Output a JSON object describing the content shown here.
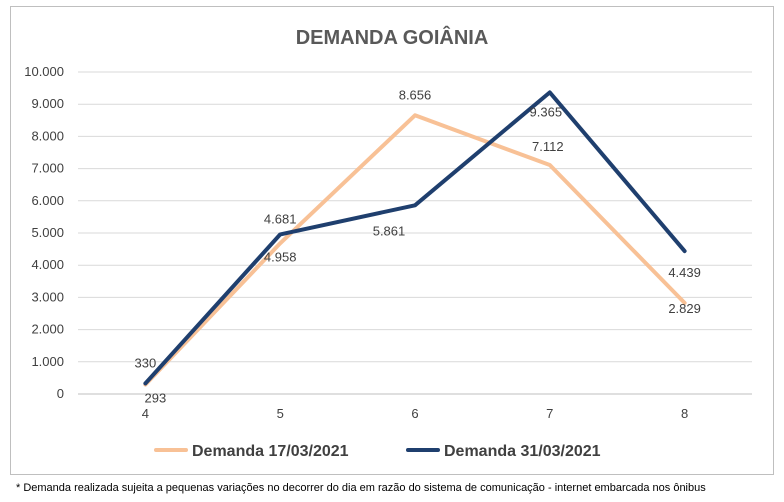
{
  "chart_data": {
    "type": "line",
    "title": "DEMANDA GOIÂNIA",
    "xlabel": "",
    "ylabel": "",
    "categories": [
      "4",
      "5",
      "6",
      "7",
      "8"
    ],
    "ylim": [
      0,
      10000
    ],
    "yticks": [
      0,
      1000,
      2000,
      3000,
      4000,
      5000,
      6000,
      7000,
      8000,
      9000,
      10000
    ],
    "ytick_labels": [
      "0",
      "1.000",
      "2.000",
      "3.000",
      "4.000",
      "5.000",
      "6.000",
      "7.000",
      "8.000",
      "9.000",
      "10.000"
    ],
    "grid": true,
    "legend_position": "bottom",
    "series": [
      {
        "name": "Demanda 17/03/2021",
        "color": "#f8c196",
        "values": [
          293,
          4681,
          8656,
          7112,
          2829
        ],
        "labels": [
          "293",
          "4.681",
          "8.656",
          "7.112",
          "2.829"
        ]
      },
      {
        "name": "Demanda 31/03/2021",
        "color": "#1f3f6e",
        "values": [
          330,
          4958,
          5861,
          9365,
          4439
        ],
        "labels": [
          "330",
          "4.958",
          "5.861",
          "9.365",
          "4.439"
        ]
      }
    ]
  },
  "footnote": "* Demanda realizada sujeita a pequenas variações no decorrer do dia  em razão do sistema de comunicação - internet embarcada nos ônibus"
}
